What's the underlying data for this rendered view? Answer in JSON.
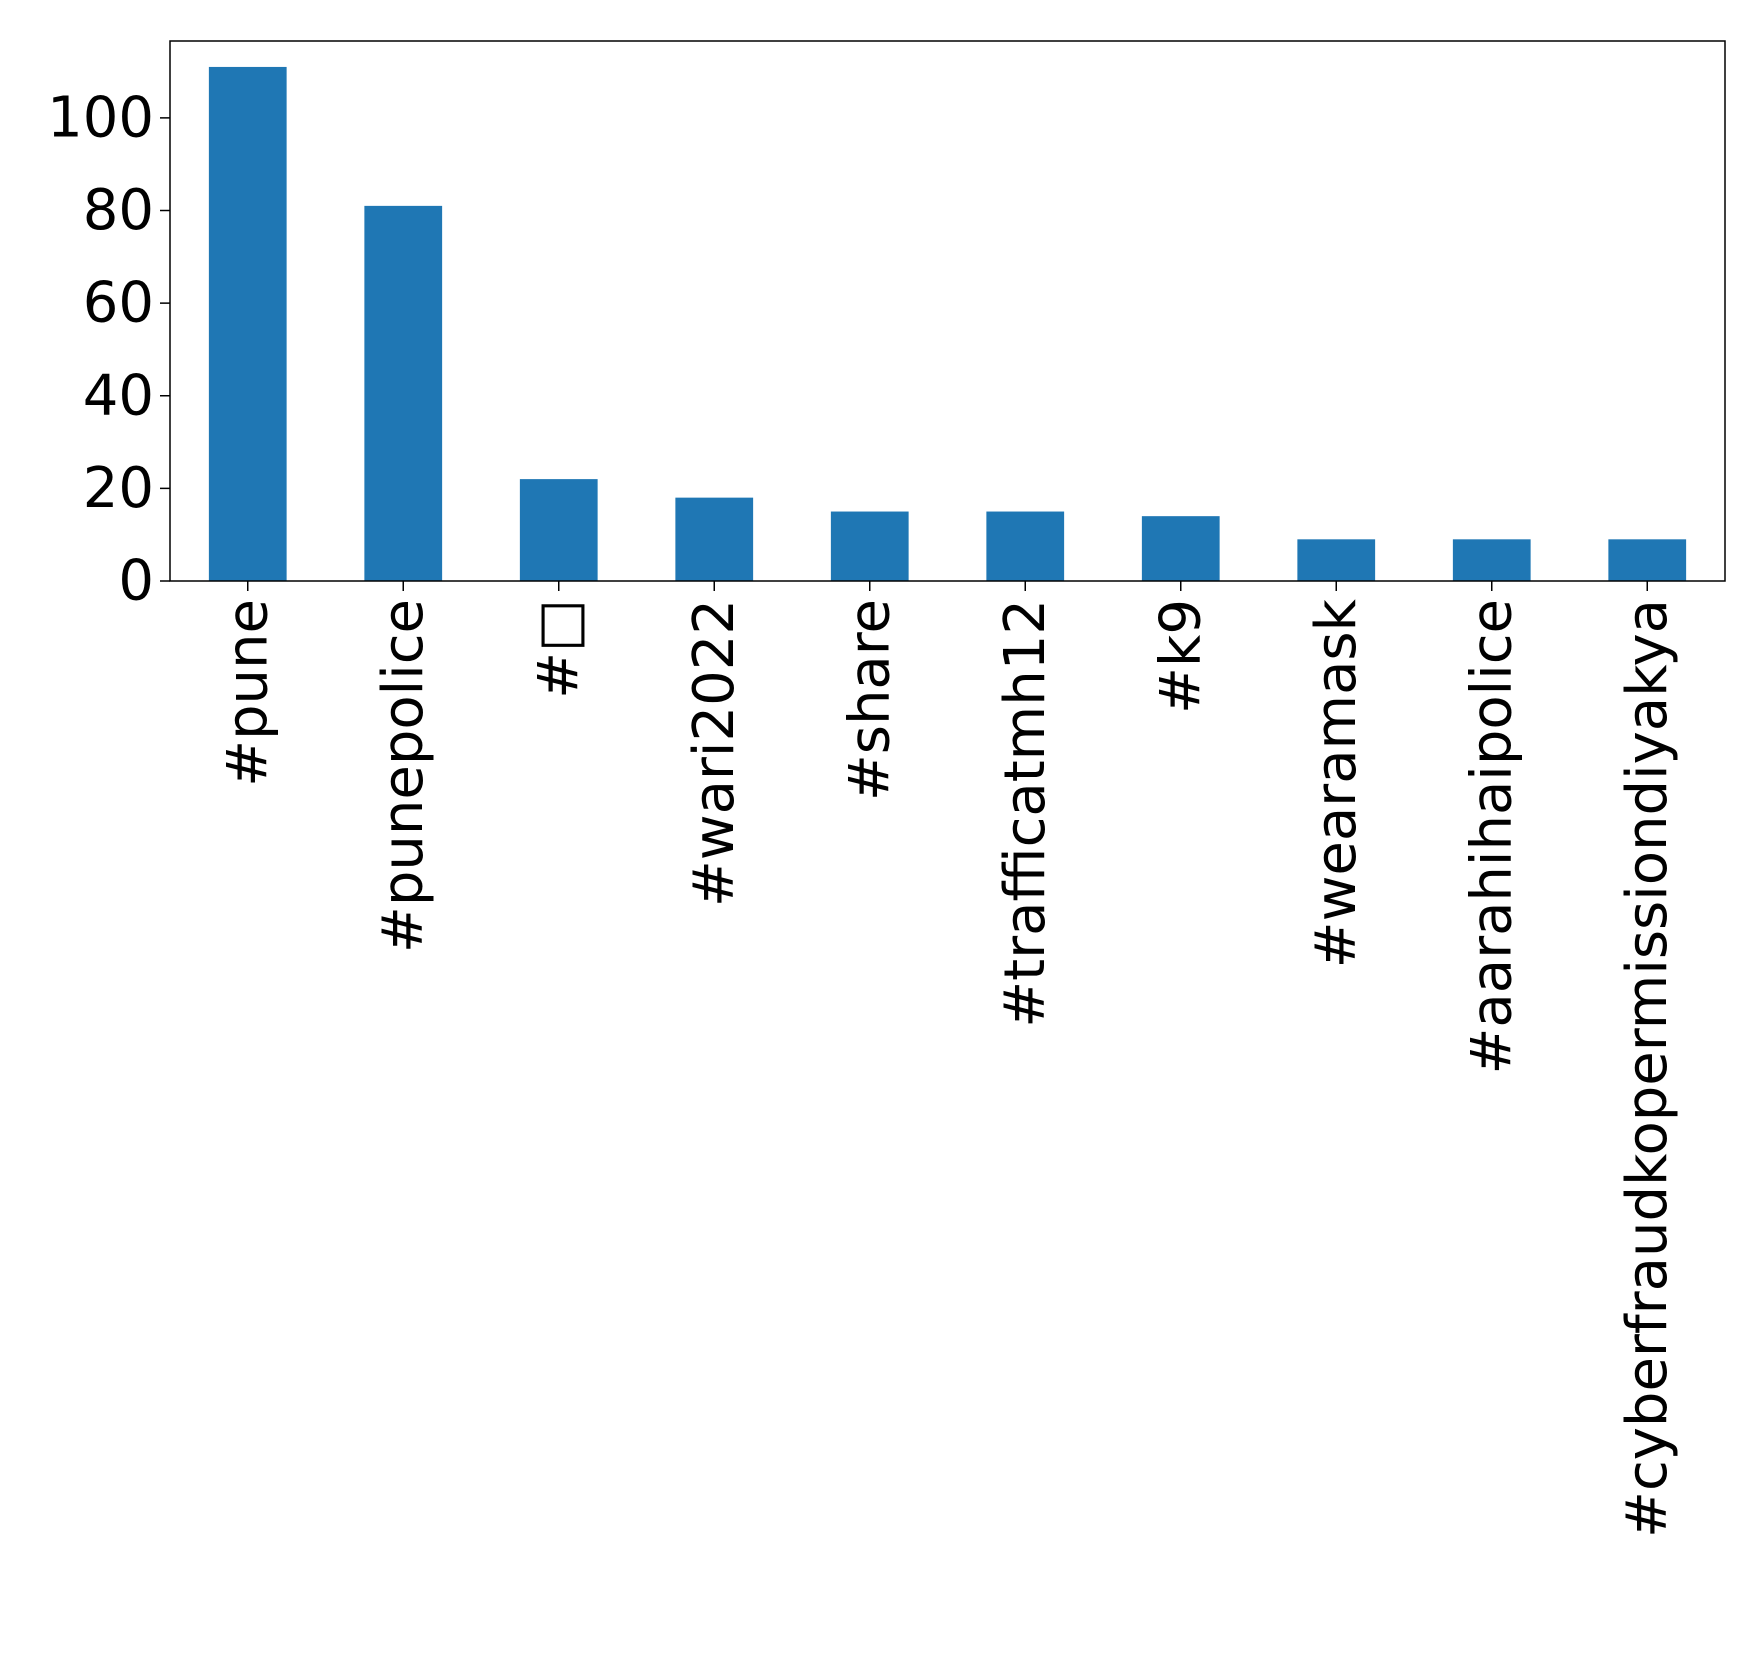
{
  "chart_data": {
    "type": "bar",
    "title": "",
    "xlabel": "",
    "ylabel": "",
    "categories": [
      "#pune",
      "#punepolice",
      "#□",
      "#wari2022",
      "#share",
      "#trafficatmh12",
      "#k9",
      "#wearamask",
      "#aarahihaipolice",
      "#cyberfraudkopermissiondiyakya"
    ],
    "values": [
      111,
      81,
      22,
      18,
      15,
      15,
      14,
      9,
      9,
      9
    ],
    "yticks": [
      0,
      20,
      40,
      60,
      80,
      100
    ],
    "ytick_labels": [
      "0",
      "20",
      "40",
      "60",
      "80",
      "100"
    ],
    "ylim": [
      0,
      116.6
    ],
    "grid": false,
    "legend": "none",
    "bar_color": "#1f77b4"
  }
}
